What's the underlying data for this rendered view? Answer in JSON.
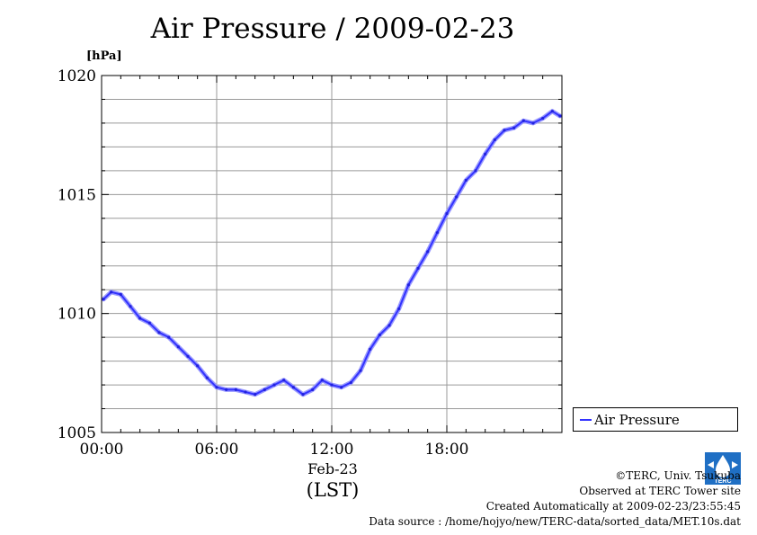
{
  "title": "Air Pressure / 2009-02-23",
  "unit_label": "[hPa]",
  "x_date_label": "Feb-23",
  "x_timezone_label": "(LST)",
  "legend": {
    "label": "Air Pressure"
  },
  "footer": {
    "copyright": "©TERC, Univ. Tsukuba",
    "observed": "Observed at TERC Tower site",
    "created": "Created Automatically at 2009-02-23/23:55:45",
    "source": "Data source : /home/hojyo/new/TERC-data/sorted_data/MET.10s.dat"
  },
  "logo": {
    "icon": "terc-logo-icon",
    "text": "TERC",
    "color": "#1f6fc4"
  },
  "chart_data": {
    "type": "line",
    "title": "Air Pressure / 2009-02-23",
    "xlabel": "Feb-23 (LST)",
    "ylabel": "[hPa]",
    "x_unit": "hour",
    "xlim": [
      0,
      24
    ],
    "ylim": [
      1005,
      1020
    ],
    "x_ticks": [
      0,
      6,
      12,
      18
    ],
    "x_tick_labels": [
      "00:00",
      "06:00",
      "12:00",
      "18:00"
    ],
    "y_ticks": [
      1005,
      1010,
      1015,
      1020
    ],
    "y_tick_labels": [
      "1005",
      "1010",
      "1015",
      "1020"
    ],
    "grid": true,
    "legend_position": "outside-right-bottom",
    "series": [
      {
        "name": "Air Pressure",
        "color": "#3333ff",
        "x": [
          0.1,
          0.5,
          1.0,
          1.5,
          2.0,
          2.5,
          3.0,
          3.5,
          4.0,
          4.5,
          5.0,
          5.5,
          6.0,
          6.5,
          7.0,
          7.5,
          8.0,
          8.5,
          9.0,
          9.5,
          10.0,
          10.5,
          11.0,
          11.5,
          12.0,
          12.5,
          13.0,
          13.5,
          14.0,
          14.5,
          15.0,
          15.5,
          16.0,
          16.5,
          17.0,
          17.5,
          18.0,
          18.5,
          19.0,
          19.5,
          20.0,
          20.5,
          21.0,
          21.5,
          22.0,
          22.5,
          23.0,
          23.5,
          23.9
        ],
        "values": [
          1010.6,
          1010.9,
          1010.8,
          1010.3,
          1009.8,
          1009.6,
          1009.2,
          1009.0,
          1008.6,
          1008.2,
          1007.8,
          1007.3,
          1006.9,
          1006.8,
          1006.8,
          1006.7,
          1006.6,
          1006.8,
          1007.0,
          1007.2,
          1006.9,
          1006.6,
          1006.8,
          1007.2,
          1007.0,
          1006.9,
          1007.1,
          1007.6,
          1008.5,
          1009.1,
          1009.5,
          1010.2,
          1011.2,
          1011.9,
          1012.6,
          1013.4,
          1014.2,
          1014.9,
          1015.6,
          1016.0,
          1016.7,
          1017.3,
          1017.7,
          1017.8,
          1018.1,
          1018.0,
          1018.2,
          1018.5,
          1018.3
        ]
      }
    ]
  }
}
